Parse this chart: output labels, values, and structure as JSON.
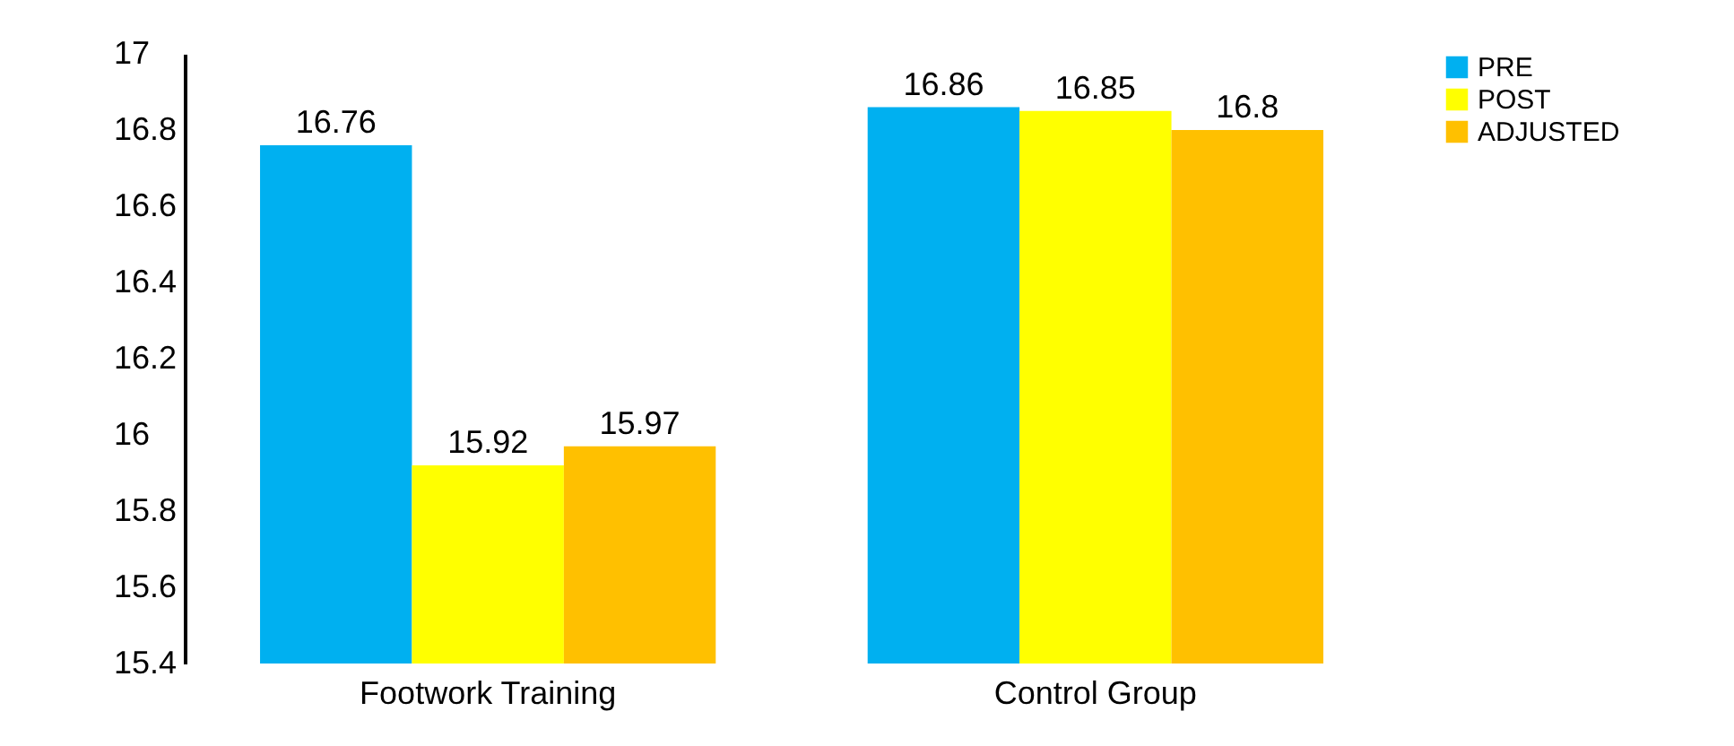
{
  "chart_data": {
    "type": "bar",
    "categories": [
      "Footwork Training",
      "Control Group"
    ],
    "series": [
      {
        "name": "PRE",
        "color": "#00b0f0",
        "values": [
          16.76,
          16.86
        ]
      },
      {
        "name": "POST",
        "color": "#ffff00",
        "values": [
          15.92,
          16.85
        ]
      },
      {
        "name": "ADJUSTED",
        "color": "#ffc000",
        "values": [
          15.97,
          16.8
        ]
      }
    ],
    "ylim": [
      15.4,
      17
    ],
    "yticks": [
      15.4,
      15.6,
      15.8,
      16,
      16.2,
      16.4,
      16.6,
      16.8,
      17
    ],
    "data_labels": true,
    "legend": "right",
    "grid": false
  }
}
